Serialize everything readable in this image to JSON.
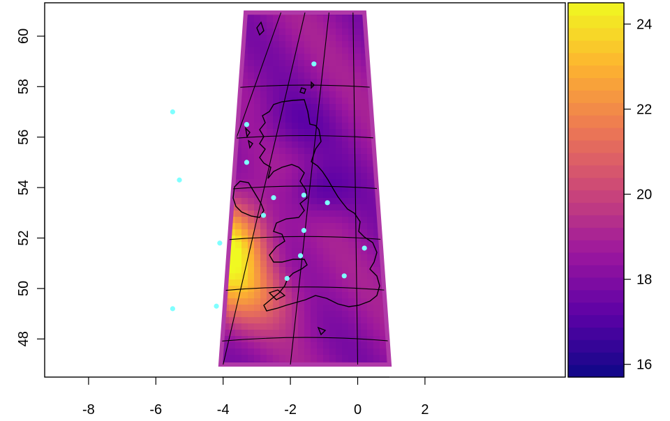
{
  "map": {
    "x_ticks": [
      "-8",
      "-6",
      "-4",
      "-2",
      "0",
      "2"
    ],
    "y_ticks": [
      "48",
      "50",
      "52",
      "54",
      "56",
      "58",
      "60"
    ],
    "colorbar_ticks": [
      "16",
      "18",
      "20",
      "22",
      "24"
    ],
    "value_range": [
      15.7,
      24.5
    ],
    "lon_range": [
      -8,
      2
    ],
    "lat_range": [
      47,
      61
    ],
    "palette": [
      "#0d0887",
      "#5c01a6",
      "#9c179e",
      "#cc4778",
      "#ed7953",
      "#fdb42f",
      "#f0f921"
    ],
    "station_color": "#7fffff",
    "graticule_color": "#000000",
    "stations": [
      {
        "lon": -1.3,
        "lat": 58.9
      },
      {
        "lon": -5.5,
        "lat": 57.0
      },
      {
        "lon": -3.3,
        "lat": 56.5
      },
      {
        "lon": -3.3,
        "lat": 55.0
      },
      {
        "lon": -5.3,
        "lat": 54.3
      },
      {
        "lon": -2.5,
        "lat": 53.6
      },
      {
        "lon": -1.6,
        "lat": 53.7
      },
      {
        "lon": -0.9,
        "lat": 53.4
      },
      {
        "lon": -2.8,
        "lat": 52.9
      },
      {
        "lon": -1.6,
        "lat": 52.3
      },
      {
        "lon": 0.2,
        "lat": 51.6
      },
      {
        "lon": -4.1,
        "lat": 51.8
      },
      {
        "lon": -1.7,
        "lat": 51.3
      },
      {
        "lon": -2.1,
        "lat": 50.4
      },
      {
        "lon": -0.4,
        "lat": 50.5
      },
      {
        "lon": -4.2,
        "lat": 49.3
      },
      {
        "lon": -5.5,
        "lat": 49.2
      }
    ]
  }
}
